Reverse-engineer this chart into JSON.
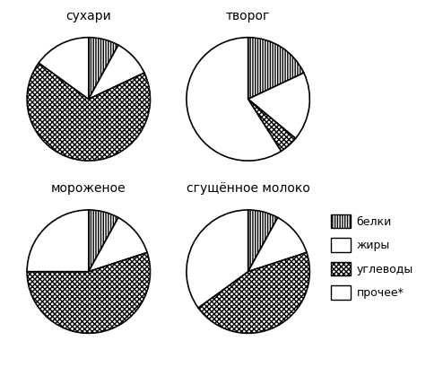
{
  "charts": [
    {
      "title": "сухари",
      "values": [
        8,
        10,
        67,
        15
      ],
      "startangle": 90,
      "counterclock": false
    },
    {
      "title": "творог",
      "values": [
        18,
        18,
        5,
        59
      ],
      "startangle": 90,
      "counterclock": false
    },
    {
      "title": "мороженое",
      "values": [
        8,
        12,
        55,
        25
      ],
      "startangle": 90,
      "counterclock": false
    },
    {
      "title": "сгущённое молоко",
      "values": [
        8,
        12,
        45,
        35
      ],
      "startangle": 90,
      "counterclock": false
    }
  ],
  "legend_labels": [
    "белки",
    "жиры",
    "углеводы",
    "прочее*"
  ],
  "hatch_patterns": [
    "||||||",
    "======",
    "xxxxxx",
    ""
  ],
  "face_colors": [
    "white",
    "white",
    "white",
    "white"
  ],
  "background_color": "#ffffff",
  "title_fontsize": 10,
  "legend_fontsize": 9
}
